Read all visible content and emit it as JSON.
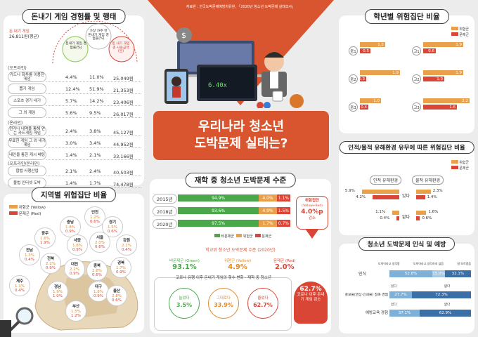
{
  "source": "자료원 : 한국도박문제예방치유원, 「2020년 청소년 도박문제 실태조사」",
  "center": {
    "line1": "우리나라 청소년",
    "line2": "도박문제 실태는?",
    "odds": "6.40x"
  },
  "games": {
    "title": "돈내기 게임 경험률 및 행태",
    "note_label": "돈 내기 게임",
    "note_value": "26,811원(평균)",
    "col1": "돈내기 게임 경험률(%)",
    "col2": "가장 자주 한 돈내기 게임 경험률(%)",
    "col3": "돈 내기 게임 총 사용금액(원)",
    "sections": [
      {
        "name": "(오프라인)",
        "rows": [
          {
            "label": "카드나 화투를 이용한 게임",
            "c1": "4.4%",
            "c2": "11.0%",
            "c3": "25,049원"
          },
          {
            "label": "뽑기 게임",
            "c1": "12.4%",
            "c2": "51.9%",
            "c3": "21,353원"
          },
          {
            "label": "스포츠 경기 내기",
            "c1": "5.7%",
            "c2": "14.2%",
            "c3": "23,406원"
          },
          {
            "label": "그 외 게임",
            "c1": "5.6%",
            "c2": "9.5%",
            "c3": "26,017원"
          }
        ]
      },
      {
        "name": "(온라인)",
        "rows": [
          {
            "label": "현거나 내역을 통해 얻는 카드게임 게임",
            "c1": "2.4%",
            "c2": "3.8%",
            "c3": "45,127원"
          },
          {
            "label": "무료한 게임 그 외 내기게임",
            "c1": "3.0%",
            "c2": "3.4%",
            "c3": "44,952원"
          },
          {
            "label": "내인을 통한 캐시 베팅",
            "c1": "1.4%",
            "c2": "2.1%",
            "c3": "33,166원"
          }
        ]
      },
      {
        "name": "(오프라인/온라인)",
        "rows": [
          {
            "label": "합법 사행산업",
            "c1": "2.1%",
            "c2": "2.4%",
            "c3": "40,503원"
          },
          {
            "label": "불법 인터넷 도박",
            "c1": "1.4%",
            "c2": "1.7%",
            "c3": "74,478원"
          }
        ]
      }
    ]
  },
  "regions": {
    "title": "지역별 위험집단 비율",
    "legend_yellow": "위험군 (Yellow)",
    "legend_red": "문제군 (Red)",
    "items": [
      {
        "name": "인천",
        "y": "1.2%",
        "r": "0.6%"
      },
      {
        "name": "충남",
        "y": "1.8%",
        "r": "0.9%"
      },
      {
        "name": "경기",
        "y": "1.5%",
        "r": "0.6%"
      },
      {
        "name": "광주",
        "y": "1.6%",
        "r": "1.9%"
      },
      {
        "name": "세종",
        "y": "1.8%",
        "r": "0.9%"
      },
      {
        "name": "서울",
        "y": "2.0%",
        "r": "0.6%"
      },
      {
        "name": "강원",
        "y": "2.2%",
        "r": "0.4%"
      },
      {
        "name": "전남",
        "y": "1.3%",
        "r": "0.4%"
      },
      {
        "name": "전북",
        "y": "2.2%",
        "r": "0.9%"
      },
      {
        "name": "대전",
        "y": "2.2%",
        "r": "0.9%"
      },
      {
        "name": "충북",
        "y": "2.8%",
        "r": "0.6%"
      },
      {
        "name": "경북",
        "y": "1.7%",
        "r": "0.9%"
      },
      {
        "name": "제주",
        "y": "1.1%",
        "r": "0.4%"
      },
      {
        "name": "경남",
        "y": "1.9%",
        "r": "1.0%"
      },
      {
        "name": "대구",
        "y": "1.8%",
        "r": "0.9%"
      },
      {
        "name": "부산",
        "y": "1.5%",
        "r": "1.2%"
      },
      {
        "name": "울산",
        "y": "2.8%",
        "r": "0.6%"
      }
    ]
  },
  "student_level": {
    "title": "재학 중 청소년 도박문제 수준",
    "rows": [
      {
        "year": "2015년",
        "green": 94.9,
        "yellow": 4.0,
        "red": 1.1,
        "g": "94.9%",
        "yv": "4.0%",
        "rv": "1.1%"
      },
      {
        "year": "2018년",
        "green": 93.6,
        "yellow": 4.9,
        "red": 1.5,
        "g": "93.6%",
        "yv": "4.9%",
        "rv": "1.5%"
      },
      {
        "year": "2020년",
        "green": 97.5,
        "yellow": 1.7,
        "red": 0.7,
        "g": "97.5%",
        "yv": "1.7%",
        "rv": "0.7%"
      }
    ],
    "legend": [
      "비문제군",
      "위험군",
      "문제군"
    ],
    "risk_label": "위험집단",
    "risk_sub": "(Yellow+Red)",
    "risk_value": "4.0%p",
    "risk_change": "감소"
  },
  "out_of_school": {
    "title": "학교밖 청소년 도박문제 수준 (2020년)",
    "green_label": "비문제군 (Green)",
    "green_value": "93.1%",
    "yellow_label": "위험군 (Yellow)",
    "yellow_value": "4.9%",
    "red_label": "문제군 (Red)",
    "red_value": "2.0%"
  },
  "covid": {
    "title": "코로나 유행 이후 돈내기 게임의 횟수 변화 - 재학 중 청소년",
    "items": [
      {
        "label": "늘었다",
        "value": "3.5%"
      },
      {
        "label": "그대로다",
        "value": "33.9%"
      },
      {
        "label": "줄었다",
        "value": "62.7%"
      }
    ],
    "badge_value": "62.7%",
    "badge_text": "코로나 이후 돈내기 게임 감소"
  },
  "school_level": {
    "title": "학년별 위험집단 비율",
    "legend": [
      "위험군",
      "문제군"
    ],
    "items": [
      {
        "grade": "중1",
        "o": 1.2,
        "r": 0.5,
        "ov": "1.2",
        "rv": "0.5"
      },
      {
        "grade": "고1",
        "o": 1.9,
        "r": 0.6,
        "ov": "1.9",
        "rv": "0.6"
      },
      {
        "grade": "중2",
        "o": 1.9,
        "r": 0.3,
        "ov": "1.9",
        "rv": "0.3"
      },
      {
        "grade": "고2",
        "o": 1.9,
        "r": 1.0,
        "ov": "1.9",
        "rv": "1.0"
      },
      {
        "grade": "중3",
        "o": 1.0,
        "r": 0.4,
        "ov": "1.0",
        "rv": "0.4"
      },
      {
        "grade": "고3",
        "o": 2.2,
        "r": 1.6,
        "ov": "2.2",
        "rv": "1.6"
      }
    ]
  },
  "environment": {
    "title": "인적/물적 유해환경 유무에 따른 위험집단 비율",
    "legend": [
      "위험군",
      "문제군"
    ],
    "left_header": "인적 유해환경",
    "right_header": "물적 유해환경",
    "rows": [
      {
        "label": "있다",
        "lo": "5.9%",
        "lr": "4.2%",
        "ro": "2.3%",
        "rr": "1.4%",
        "lov": 5.9,
        "lrv": 4.2,
        "rov": 2.3,
        "rrv": 1.4
      },
      {
        "label": "없다",
        "lo": "1.1%",
        "lr": "0.4%",
        "ro": "1.6%",
        "rr": "0.6%",
        "lov": 1.1,
        "lrv": 0.4,
        "rov": 1.6,
        "rrv": 0.6
      }
    ]
  },
  "awareness": {
    "title": "청소년 도박문제 인식 및 예방",
    "r1_label": "인식",
    "r1_legend": [
      "도박이라고 생각함",
      "도박이라고 생각하지 않음",
      "잘 모르겠음"
    ],
    "r1_values": [
      "52.8%",
      "15.0%",
      "32.1%"
    ],
    "r1_nums": [
      52.8,
      15.0,
      32.1
    ],
    "r2_label": "홍보물(영상·인쇄물) 접촉 경험",
    "r2_values": [
      "27.7%",
      "72.3%"
    ],
    "r2_nums": [
      27.7,
      72.3
    ],
    "r3_label": "예방교육 경험",
    "r3_values": [
      "37.1%",
      "62.9%"
    ],
    "r3_nums": [
      37.1,
      62.9
    ],
    "yes": "있다",
    "no": "없다"
  }
}
